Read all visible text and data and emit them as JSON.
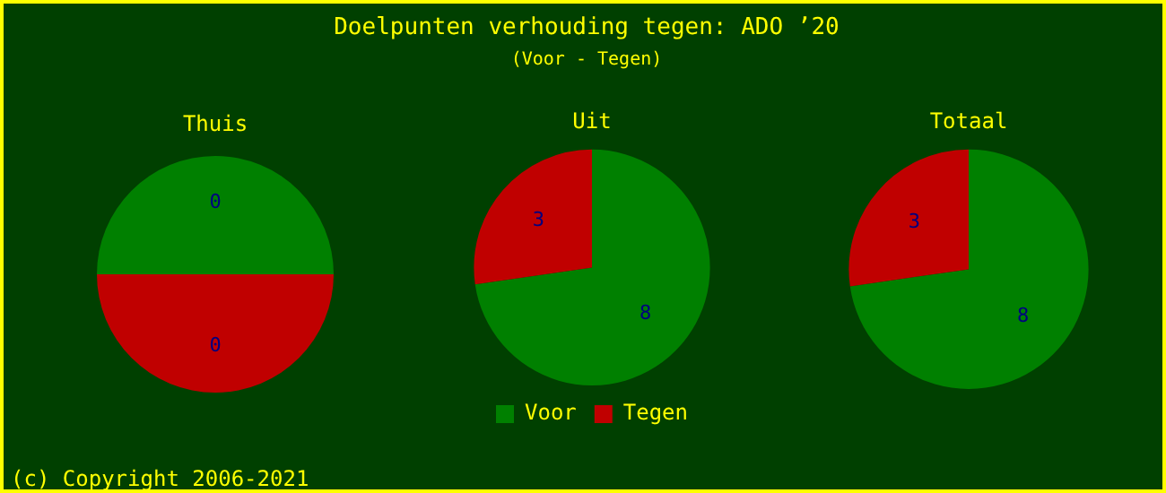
{
  "chart_data": [
    {
      "type": "other",
      "title": "Doelpunten verhouding tegen: ADO ’20",
      "subtitle": "(Voor - Tegen)",
      "annotations": [
        "(c) Copyright 2006-2021"
      ]
    },
    {
      "type": "other",
      "title": "Thuis",
      "colors": [
        "#008000",
        "#c00000"
      ],
      "annotations": [
        "0",
        "0"
      ]
    },
    {
      "type": "pie",
      "title": "Uit",
      "categories": [
        "Voor",
        "Tegen"
      ],
      "values": [
        8,
        3
      ],
      "colors": [
        "#008000",
        "#c00000"
      ],
      "data_labels": true,
      "legend": "bottom"
    },
    {
      "type": "pie",
      "title": "Totaal",
      "categories": [
        null,
        null
      ],
      "values": [
        8,
        3
      ],
      "colors": [
        "#008000",
        "#c00000"
      ],
      "data_labels": true
    }
  ]
}
